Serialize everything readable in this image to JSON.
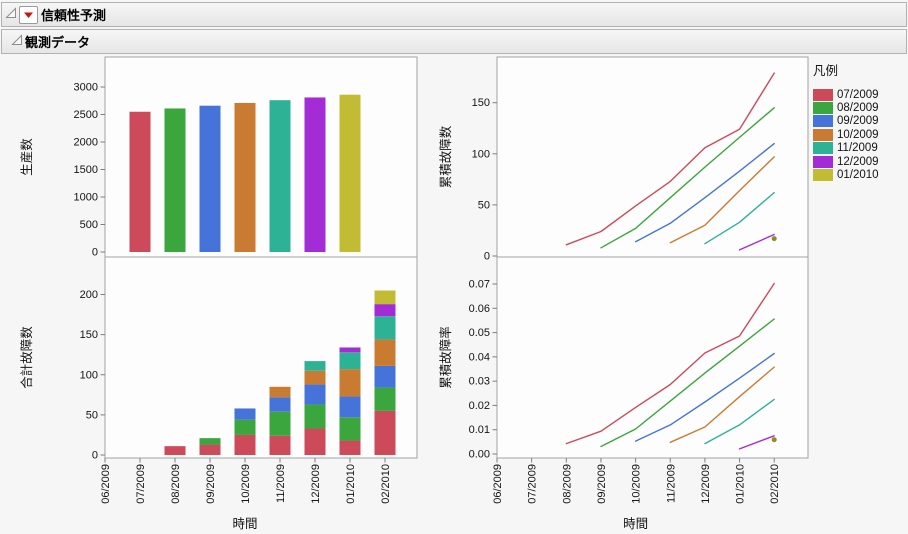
{
  "outline_nodes": [
    {
      "title": "信頼性予測"
    },
    {
      "title": "観測データ"
    }
  ],
  "legend": {
    "title": "凡例",
    "entries": [
      {
        "label": "07/2009",
        "color": "#cd4a5b"
      },
      {
        "label": "08/2009",
        "color": "#3ba53e"
      },
      {
        "label": "09/2009",
        "color": "#4673d9"
      },
      {
        "label": "10/2009",
        "color": "#c97b32"
      },
      {
        "label": "11/2009",
        "color": "#2eb295"
      },
      {
        "label": "12/2009",
        "color": "#a32cd6"
      },
      {
        "label": "01/2010",
        "color": "#c2bc35"
      }
    ]
  },
  "time_axis": {
    "title": "時間",
    "labels": [
      "06/2009",
      "07/2009",
      "08/2009",
      "09/2009",
      "10/2009",
      "11/2009",
      "12/2009",
      "01/2010",
      "02/2010"
    ]
  },
  "chart_data": [
    {
      "type": "bar",
      "ylabel": "生産数",
      "xlabel": "時間",
      "x_categories": [
        "06/2009",
        "07/2009",
        "08/2009",
        "09/2009",
        "10/2009",
        "11/2009",
        "12/2009",
        "01/2010",
        "02/2010"
      ],
      "categories": [
        "07/2009",
        "08/2009",
        "09/2009",
        "10/2009",
        "11/2009",
        "12/2009",
        "01/2010"
      ],
      "values": [
        2550,
        2610,
        2660,
        2710,
        2760,
        2810,
        2860
      ],
      "ytick_values": [
        0,
        500,
        1000,
        1500,
        2000,
        2500,
        3000
      ],
      "ytick_labels": [
        "0",
        "500",
        "1000",
        "1500",
        "2000",
        "2500",
        "3000"
      ],
      "ylim": [
        0,
        3545
      ],
      "grid": false
    },
    {
      "type": "stacked-bar",
      "ylabel": "合計故障数",
      "xlabel": "時間",
      "x_categories": [
        "06/2009",
        "07/2009",
        "08/2009",
        "09/2009",
        "10/2009",
        "11/2009",
        "12/2009",
        "01/2010",
        "02/2010"
      ],
      "series": [
        {
          "name": "07/2009",
          "start": "08/2009",
          "values": [
            11,
            13,
            25,
            24,
            33,
            18,
            55
          ]
        },
        {
          "name": "08/2009",
          "start": "09/2009",
          "values": [
            8,
            19,
            30,
            30,
            29,
            29
          ]
        },
        {
          "name": "09/2009",
          "start": "10/2009",
          "values": [
            14,
            18,
            25,
            26,
            27
          ]
        },
        {
          "name": "10/2009",
          "start": "11/2009",
          "values": [
            13,
            17,
            34,
            33
          ]
        },
        {
          "name": "11/2009",
          "start": "12/2009",
          "values": [
            12,
            21,
            29
          ]
        },
        {
          "name": "12/2009",
          "start": "01/2010",
          "values": [
            6,
            15
          ]
        },
        {
          "name": "01/2010",
          "start": "02/2010",
          "values": [
            17
          ]
        }
      ],
      "ytick_values": [
        0,
        50,
        100,
        150,
        200
      ],
      "ytick_labels": [
        "0",
        "50",
        "100",
        "150",
        "200"
      ],
      "ylim": [
        0,
        247
      ],
      "grid": false
    },
    {
      "type": "line",
      "ylabel": "累積故障数",
      "xlabel": "時間",
      "x_categories": [
        "06/2009",
        "07/2009",
        "08/2009",
        "09/2009",
        "10/2009",
        "11/2009",
        "12/2009",
        "01/2010",
        "02/2010"
      ],
      "series": [
        {
          "name": "07/2009",
          "start": "08/2009",
          "values": [
            11,
            24,
            49,
            73,
            106,
            124,
            179
          ]
        },
        {
          "name": "08/2009",
          "start": "09/2009",
          "values": [
            8,
            27,
            57,
            87,
            116,
            145
          ]
        },
        {
          "name": "09/2009",
          "start": "10/2009",
          "values": [
            14,
            32,
            57,
            83,
            110
          ]
        },
        {
          "name": "10/2009",
          "start": "11/2009",
          "values": [
            13,
            30,
            64,
            97
          ]
        },
        {
          "name": "11/2009",
          "start": "12/2009",
          "values": [
            12,
            33,
            62
          ]
        },
        {
          "name": "12/2009",
          "start": "01/2010",
          "values": [
            6,
            21
          ]
        },
        {
          "name": "01/2010",
          "start": "02/2010",
          "values": [
            17
          ],
          "dot_color": "#8f8a2a"
        }
      ],
      "ytick_values": [
        0,
        50,
        100,
        150
      ],
      "ytick_labels": [
        "0",
        "50",
        "100",
        "150"
      ],
      "ylim": [
        0,
        195
      ],
      "grid": false,
      "legend_position": "right"
    },
    {
      "type": "line",
      "ylabel": "累積故障率",
      "xlabel": "時間",
      "x_categories": [
        "06/2009",
        "07/2009",
        "08/2009",
        "09/2009",
        "10/2009",
        "11/2009",
        "12/2009",
        "01/2010",
        "02/2010"
      ],
      "series": [
        {
          "name": "07/2009",
          "start": "08/2009",
          "values": [
            0.0043,
            0.0094,
            0.0192,
            0.0286,
            0.0416,
            0.0486,
            0.0702
          ]
        },
        {
          "name": "08/2009",
          "start": "09/2009",
          "values": [
            0.0031,
            0.0103,
            0.0218,
            0.0333,
            0.0444,
            0.0556
          ]
        },
        {
          "name": "09/2009",
          "start": "10/2009",
          "values": [
            0.0053,
            0.012,
            0.0214,
            0.0312,
            0.0414
          ]
        },
        {
          "name": "10/2009",
          "start": "11/2009",
          "values": [
            0.0048,
            0.0111,
            0.0236,
            0.0358
          ]
        },
        {
          "name": "11/2009",
          "start": "12/2009",
          "values": [
            0.0043,
            0.012,
            0.0225
          ]
        },
        {
          "name": "12/2009",
          "start": "01/2010",
          "values": [
            0.0021,
            0.0075
          ]
        },
        {
          "name": "01/2010",
          "start": "02/2010",
          "values": [
            0.0059
          ],
          "dot_color": "#8f8a2a"
        }
      ],
      "ytick_values": [
        0,
        0.01,
        0.02,
        0.03,
        0.04,
        0.05,
        0.06,
        0.07
      ],
      "ytick_labels": [
        "0.00",
        "0.01",
        "0.02",
        "0.03",
        "0.04",
        "0.05",
        "0.06",
        "0.07"
      ],
      "ylim": [
        0,
        0.081
      ],
      "grid": false
    }
  ]
}
